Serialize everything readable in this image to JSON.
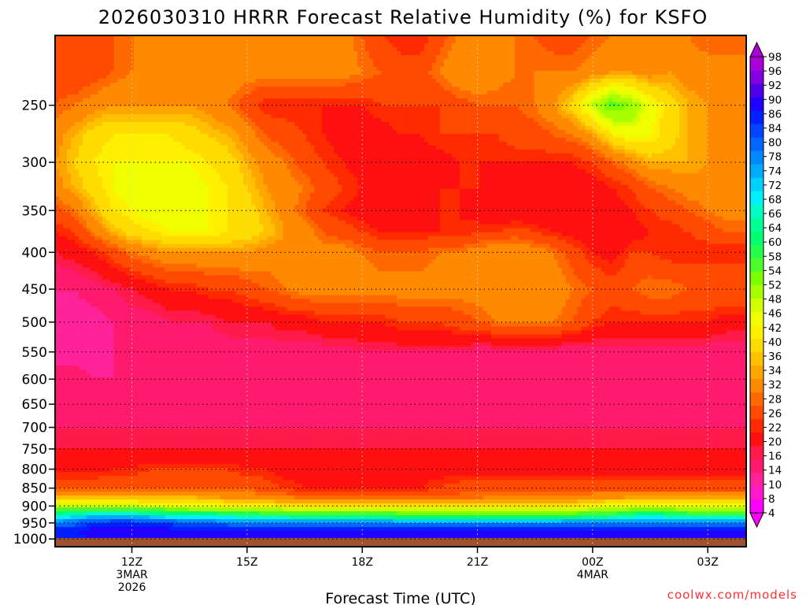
{
  "chart_data": {
    "type": "heatmap",
    "title": "2026030310 HRRR Forecast Relative Humidity (%) for KSFO",
    "xlabel": "Forecast Time (UTC)",
    "ylabel": "",
    "credit": "coolwx.com/models",
    "y_scale": "pressure (log-like), inverted",
    "ylim": [
      200,
      1025
    ],
    "y_ticks": [
      250,
      300,
      350,
      400,
      450,
      500,
      550,
      600,
      650,
      700,
      750,
      800,
      850,
      900,
      950,
      1000
    ],
    "x_range_hours": [
      10,
      28
    ],
    "x_ticks": [
      {
        "hour": 12,
        "lines": [
          "12Z",
          "3MAR",
          "2026"
        ]
      },
      {
        "hour": 15,
        "lines": [
          "15Z"
        ]
      },
      {
        "hour": 18,
        "lines": [
          "18Z"
        ]
      },
      {
        "hour": 21,
        "lines": [
          "21Z"
        ]
      },
      {
        "hour": 24,
        "lines": [
          "00Z",
          "4MAR"
        ]
      },
      {
        "hour": 27,
        "lines": [
          "03Z"
        ]
      }
    ],
    "grid": true,
    "colorbar": {
      "placement": "right",
      "levels": [
        4,
        8,
        10,
        14,
        16,
        20,
        22,
        26,
        28,
        32,
        34,
        36,
        40,
        42,
        46,
        48,
        52,
        54,
        58,
        60,
        64,
        66,
        68,
        72,
        74,
        78,
        80,
        84,
        86,
        90,
        92,
        96,
        98
      ],
      "colors": [
        "#ff00ff",
        "#ff19c8",
        "#ff2299",
        "#ff1a6e",
        "#ff1a4a",
        "#ff1010",
        "#ff2a00",
        "#ff4a00",
        "#ff6a00",
        "#ff8a00",
        "#ffa500",
        "#ffc000",
        "#ffdc00",
        "#fff000",
        "#f0ff00",
        "#d2ff00",
        "#a8ff00",
        "#7cff00",
        "#4cff2a",
        "#22ff4c",
        "#00ff70",
        "#00ff94",
        "#00ffc4",
        "#00f0ff",
        "#00d0ff",
        "#00aaff",
        "#0088ff",
        "#0066ff",
        "#0044ff",
        "#0020ff",
        "#2000ff",
        "#5000e8",
        "#8000e0",
        "#aa00d8"
      ],
      "tick_labels": [
        98,
        96,
        92,
        90,
        86,
        84,
        80,
        78,
        74,
        72,
        68,
        66,
        64,
        60,
        58,
        54,
        52,
        48,
        46,
        42,
        40,
        36,
        34,
        32,
        28,
        26,
        22,
        20,
        16,
        14,
        10,
        8,
        4
      ]
    },
    "rows": [
      {
        "p": 200,
        "values": [
          26,
          22,
          24,
          26,
          28,
          30,
          30,
          28,
          30,
          30,
          28,
          30,
          30,
          30,
          30,
          30,
          26,
          22,
          20,
          20,
          24,
          28,
          32,
          30,
          28,
          26,
          24,
          24,
          26,
          28,
          30,
          30,
          28,
          28,
          26,
          26,
          26
        ]
      },
      {
        "p": 225,
        "values": [
          24,
          22,
          24,
          26,
          28,
          30,
          30,
          30,
          30,
          30,
          30,
          30,
          30,
          30,
          30,
          30,
          28,
          26,
          24,
          24,
          28,
          32,
          32,
          30,
          28,
          28,
          28,
          28,
          30,
          32,
          32,
          30,
          32,
          30,
          30,
          30,
          30
        ]
      },
      {
        "p": 250,
        "values": [
          26,
          28,
          30,
          32,
          32,
          32,
          32,
          32,
          30,
          28,
          24,
          20,
          20,
          20,
          20,
          20,
          20,
          22,
          22,
          22,
          22,
          24,
          26,
          26,
          26,
          28,
          32,
          38,
          48,
          56,
          52,
          44,
          38,
          34,
          32,
          30,
          30
        ]
      },
      {
        "p": 275,
        "values": [
          30,
          34,
          38,
          40,
          40,
          40,
          40,
          38,
          36,
          34,
          30,
          26,
          24,
          22,
          20,
          18,
          18,
          18,
          20,
          20,
          22,
          22,
          22,
          22,
          24,
          24,
          26,
          28,
          32,
          40,
          44,
          42,
          38,
          34,
          32,
          30,
          30
        ]
      },
      {
        "p": 300,
        "values": [
          32,
          36,
          40,
          42,
          42,
          42,
          42,
          42,
          40,
          38,
          34,
          30,
          28,
          24,
          22,
          20,
          18,
          18,
          18,
          18,
          18,
          20,
          20,
          20,
          20,
          20,
          20,
          20,
          22,
          26,
          30,
          34,
          34,
          34,
          32,
          30,
          30
        ]
      },
      {
        "p": 325,
        "values": [
          30,
          34,
          38,
          42,
          44,
          44,
          44,
          44,
          42,
          40,
          36,
          32,
          30,
          28,
          24,
          22,
          20,
          20,
          20,
          20,
          20,
          20,
          20,
          18,
          18,
          18,
          18,
          18,
          18,
          20,
          22,
          26,
          28,
          30,
          30,
          30,
          30
        ]
      },
      {
        "p": 350,
        "values": [
          24,
          28,
          34,
          40,
          42,
          44,
          44,
          44,
          42,
          40,
          38,
          34,
          30,
          26,
          22,
          20,
          18,
          16,
          18,
          18,
          20,
          20,
          18,
          16,
          16,
          16,
          16,
          16,
          16,
          18,
          20,
          22,
          24,
          26,
          28,
          30,
          30
        ]
      },
      {
        "p": 375,
        "values": [
          20,
          22,
          28,
          34,
          38,
          40,
          42,
          42,
          42,
          40,
          38,
          36,
          32,
          30,
          26,
          24,
          22,
          20,
          20,
          20,
          20,
          20,
          22,
          22,
          24,
          22,
          20,
          18,
          16,
          16,
          18,
          20,
          20,
          22,
          24,
          26,
          26
        ]
      },
      {
        "p": 400,
        "values": [
          16,
          18,
          20,
          24,
          28,
          30,
          32,
          32,
          32,
          32,
          32,
          30,
          30,
          30,
          30,
          30,
          28,
          26,
          26,
          26,
          28,
          28,
          30,
          32,
          32,
          30,
          28,
          24,
          20,
          18,
          22,
          22,
          20,
          20,
          20,
          20,
          20
        ]
      },
      {
        "p": 450,
        "values": [
          10,
          10,
          12,
          14,
          16,
          18,
          20,
          20,
          22,
          22,
          24,
          26,
          28,
          30,
          30,
          30,
          30,
          30,
          30,
          30,
          30,
          30,
          30,
          30,
          30,
          30,
          30,
          28,
          26,
          24,
          26,
          28,
          28,
          26,
          26,
          26,
          26
        ]
      },
      {
        "p": 500,
        "values": [
          8,
          8,
          8,
          10,
          12,
          12,
          14,
          14,
          14,
          16,
          16,
          16,
          18,
          18,
          20,
          20,
          20,
          20,
          22,
          22,
          22,
          24,
          26,
          28,
          28,
          28,
          28,
          26,
          22,
          20,
          20,
          20,
          20,
          20,
          20,
          18,
          18
        ]
      },
      {
        "p": 550,
        "values": [
          8,
          8,
          8,
          10,
          10,
          10,
          12,
          12,
          12,
          12,
          12,
          12,
          12,
          12,
          12,
          12,
          14,
          14,
          14,
          14,
          14,
          14,
          12,
          12,
          12,
          12,
          12,
          12,
          12,
          12,
          12,
          12,
          12,
          12,
          12,
          12,
          12
        ]
      },
      {
        "p": 600,
        "values": [
          12,
          12,
          10,
          10,
          10,
          10,
          10,
          10,
          10,
          10,
          10,
          10,
          10,
          12,
          12,
          12,
          12,
          12,
          12,
          12,
          12,
          12,
          12,
          12,
          12,
          12,
          12,
          12,
          12,
          12,
          12,
          12,
          12,
          12,
          12,
          12,
          12
        ]
      },
      {
        "p": 650,
        "values": [
          12,
          12,
          10,
          10,
          10,
          10,
          10,
          10,
          10,
          10,
          10,
          10,
          10,
          10,
          10,
          10,
          10,
          10,
          10,
          10,
          10,
          10,
          10,
          10,
          10,
          10,
          10,
          10,
          10,
          10,
          12,
          12,
          12,
          12,
          12,
          12,
          12
        ]
      },
      {
        "p": 700,
        "values": [
          14,
          14,
          14,
          14,
          14,
          14,
          14,
          14,
          14,
          14,
          14,
          14,
          14,
          14,
          14,
          14,
          14,
          14,
          14,
          14,
          14,
          14,
          14,
          14,
          14,
          14,
          14,
          14,
          14,
          14,
          14,
          14,
          14,
          14,
          14,
          14,
          14
        ]
      },
      {
        "p": 750,
        "values": [
          16,
          16,
          16,
          16,
          16,
          16,
          16,
          16,
          16,
          16,
          16,
          16,
          16,
          16,
          16,
          16,
          16,
          16,
          16,
          16,
          16,
          16,
          16,
          16,
          16,
          16,
          16,
          16,
          16,
          16,
          16,
          16,
          16,
          16,
          16,
          16,
          16
        ]
      },
      {
        "p": 800,
        "values": [
          18,
          18,
          18,
          20,
          20,
          22,
          22,
          22,
          22,
          22,
          20,
          20,
          18,
          18,
          18,
          18,
          18,
          18,
          18,
          18,
          18,
          18,
          18,
          18,
          18,
          18,
          18,
          18,
          18,
          18,
          18,
          18,
          18,
          18,
          18,
          18,
          18
        ]
      },
      {
        "p": 850,
        "values": [
          26,
          26,
          26,
          26,
          26,
          26,
          26,
          26,
          26,
          26,
          26,
          24,
          22,
          20,
          20,
          20,
          20,
          20,
          20,
          20,
          22,
          24,
          24,
          24,
          24,
          24,
          24,
          24,
          24,
          24,
          24,
          24,
          24,
          24,
          24,
          24,
          24
        ]
      },
      {
        "p": 880,
        "values": [
          36,
          36,
          36,
          36,
          36,
          36,
          36,
          36,
          34,
          32,
          32,
          30,
          30,
          28,
          28,
          28,
          28,
          28,
          28,
          28,
          28,
          28,
          28,
          30,
          30,
          30,
          30,
          30,
          32,
          32,
          34,
          34,
          34,
          34,
          34,
          34,
          34
        ]
      },
      {
        "p": 900,
        "values": [
          48,
          48,
          48,
          48,
          48,
          46,
          46,
          44,
          44,
          42,
          42,
          42,
          40,
          40,
          40,
          40,
          40,
          40,
          40,
          40,
          40,
          40,
          40,
          40,
          40,
          40,
          40,
          40,
          42,
          44,
          46,
          46,
          46,
          46,
          44,
          44,
          44
        ]
      },
      {
        "p": 925,
        "values": [
          66,
          68,
          70,
          70,
          70,
          68,
          66,
          64,
          64,
          62,
          62,
          60,
          60,
          58,
          58,
          58,
          58,
          58,
          56,
          56,
          56,
          56,
          56,
          56,
          56,
          56,
          56,
          56,
          58,
          60,
          62,
          64,
          62,
          60,
          60,
          60,
          60
        ]
      },
      {
        "p": 950,
        "values": [
          80,
          82,
          86,
          88,
          88,
          86,
          84,
          84,
          82,
          82,
          80,
          80,
          80,
          80,
          80,
          80,
          80,
          80,
          78,
          78,
          78,
          78,
          78,
          78,
          78,
          78,
          78,
          80,
          80,
          80,
          80,
          80,
          80,
          80,
          80,
          80,
          80
        ]
      },
      {
        "p": 975,
        "values": [
          88,
          90,
          92,
          92,
          92,
          92,
          92,
          90,
          90,
          90,
          90,
          90,
          90,
          90,
          90,
          90,
          90,
          90,
          90,
          90,
          90,
          90,
          90,
          90,
          90,
          90,
          90,
          90,
          90,
          90,
          90,
          90,
          90,
          90,
          90,
          90,
          90
        ]
      },
      {
        "p": 1000,
        "values": [
          86,
          88,
          90,
          90,
          90,
          90,
          90,
          90,
          90,
          90,
          90,
          90,
          90,
          90,
          90,
          90,
          90,
          90,
          90,
          90,
          90,
          90,
          90,
          90,
          90,
          90,
          90,
          90,
          90,
          90,
          90,
          90,
          90,
          90,
          90,
          90,
          90
        ]
      }
    ]
  }
}
